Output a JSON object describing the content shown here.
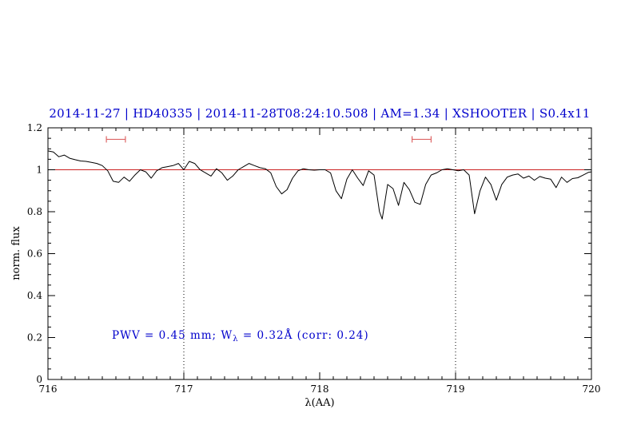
{
  "annotation": {
    "prefix": "PWV = 0.45 mm; W",
    "sub": "λ",
    "suffix": " = 0.32Å (corr: 0.24)"
  },
  "colors": {
    "title_text": "#0000cc",
    "annotation_text": "#0000cc",
    "spectrum": "#000000",
    "reference_line": "#cc2222",
    "marker": "#dd6666",
    "dotted_line": "#000000"
  },
  "chart_data": {
    "type": "line",
    "title": "2014-11-27 | HD40335 | 2014-11-28T08:24:10.508 | AM=1.34 | XSHOOTER | S0.4x11",
    "xlabel": "λ(AA)",
    "ylabel": "norm. flux",
    "xlim": [
      716,
      720
    ],
    "ylim": [
      0,
      1.2
    ],
    "xticks": [
      716,
      717,
      718,
      719,
      720
    ],
    "xtick_labels": [
      "716",
      "717",
      "718",
      "719",
      "720"
    ],
    "yticks": [
      0,
      0.2,
      0.4,
      0.6,
      0.8,
      1,
      1.2
    ],
    "ytick_labels": [
      "0",
      "0.2",
      "0.4",
      "0.6",
      "0.8",
      "1",
      "1.2"
    ],
    "minor_x_step": 0.1,
    "minor_y_step": 0.05,
    "grid": false,
    "reference_line_y": 1.0,
    "dotted_lines_x": [
      717,
      719
    ],
    "markers": [
      {
        "x_center": 716.5,
        "half_width": 0.07,
        "y": 1.145
      },
      {
        "x_center": 718.75,
        "half_width": 0.07,
        "y": 1.145
      }
    ],
    "series": [
      {
        "name": "normalized spectrum",
        "points": [
          [
            716.0,
            1.09
          ],
          [
            716.04,
            1.085
          ],
          [
            716.08,
            1.062
          ],
          [
            716.12,
            1.07
          ],
          [
            716.16,
            1.055
          ],
          [
            716.2,
            1.048
          ],
          [
            716.24,
            1.042
          ],
          [
            716.28,
            1.04
          ],
          [
            716.32,
            1.035
          ],
          [
            716.36,
            1.03
          ],
          [
            716.4,
            1.02
          ],
          [
            716.44,
            0.995
          ],
          [
            716.48,
            0.945
          ],
          [
            716.52,
            0.94
          ],
          [
            716.56,
            0.965
          ],
          [
            716.6,
            0.945
          ],
          [
            716.64,
            0.975
          ],
          [
            716.68,
            1.0
          ],
          [
            716.72,
            0.99
          ],
          [
            716.76,
            0.96
          ],
          [
            716.8,
            0.995
          ],
          [
            716.84,
            1.01
          ],
          [
            716.88,
            1.015
          ],
          [
            716.92,
            1.02
          ],
          [
            716.96,
            1.03
          ],
          [
            717.0,
            1.0
          ],
          [
            717.04,
            1.04
          ],
          [
            717.08,
            1.03
          ],
          [
            717.12,
            1.0
          ],
          [
            717.16,
            0.985
          ],
          [
            717.2,
            0.97
          ],
          [
            717.24,
            1.005
          ],
          [
            717.28,
            0.985
          ],
          [
            717.32,
            0.95
          ],
          [
            717.36,
            0.97
          ],
          [
            717.4,
            1.0
          ],
          [
            717.44,
            1.015
          ],
          [
            717.48,
            1.03
          ],
          [
            717.52,
            1.02
          ],
          [
            717.56,
            1.01
          ],
          [
            717.6,
            1.005
          ],
          [
            717.64,
            0.985
          ],
          [
            717.68,
            0.92
          ],
          [
            717.72,
            0.885
          ],
          [
            717.76,
            0.905
          ],
          [
            717.8,
            0.96
          ],
          [
            717.84,
            0.995
          ],
          [
            717.88,
            1.005
          ],
          [
            717.92,
            1.0
          ],
          [
            717.96,
            0.998
          ],
          [
            718.0,
            1.0
          ],
          [
            718.04,
            1.0
          ],
          [
            718.08,
            0.985
          ],
          [
            718.12,
            0.9
          ],
          [
            718.16,
            0.862
          ],
          [
            718.2,
            0.955
          ],
          [
            718.24,
            1.0
          ],
          [
            718.28,
            0.96
          ],
          [
            718.32,
            0.925
          ],
          [
            718.36,
            0.995
          ],
          [
            718.4,
            0.975
          ],
          [
            718.44,
            0.8
          ],
          [
            718.46,
            0.765
          ],
          [
            718.5,
            0.93
          ],
          [
            718.54,
            0.91
          ],
          [
            718.58,
            0.83
          ],
          [
            718.62,
            0.94
          ],
          [
            718.66,
            0.905
          ],
          [
            718.7,
            0.845
          ],
          [
            718.74,
            0.835
          ],
          [
            718.78,
            0.93
          ],
          [
            718.82,
            0.975
          ],
          [
            718.86,
            0.985
          ],
          [
            718.9,
            1.0
          ],
          [
            718.94,
            1.005
          ],
          [
            718.98,
            1.0
          ],
          [
            719.02,
            0.995
          ],
          [
            719.06,
            1.0
          ],
          [
            719.1,
            0.975
          ],
          [
            719.14,
            0.79
          ],
          [
            719.18,
            0.9
          ],
          [
            719.22,
            0.965
          ],
          [
            719.26,
            0.93
          ],
          [
            719.3,
            0.855
          ],
          [
            719.34,
            0.93
          ],
          [
            719.38,
            0.965
          ],
          [
            719.42,
            0.975
          ],
          [
            719.46,
            0.98
          ],
          [
            719.5,
            0.96
          ],
          [
            719.54,
            0.97
          ],
          [
            719.58,
            0.95
          ],
          [
            719.62,
            0.968
          ],
          [
            719.66,
            0.96
          ],
          [
            719.7,
            0.955
          ],
          [
            719.74,
            0.915
          ],
          [
            719.78,
            0.965
          ],
          [
            719.82,
            0.94
          ],
          [
            719.86,
            0.958
          ],
          [
            719.9,
            0.962
          ],
          [
            719.94,
            0.975
          ],
          [
            719.98,
            0.988
          ],
          [
            720.0,
            0.99
          ]
        ]
      }
    ]
  }
}
